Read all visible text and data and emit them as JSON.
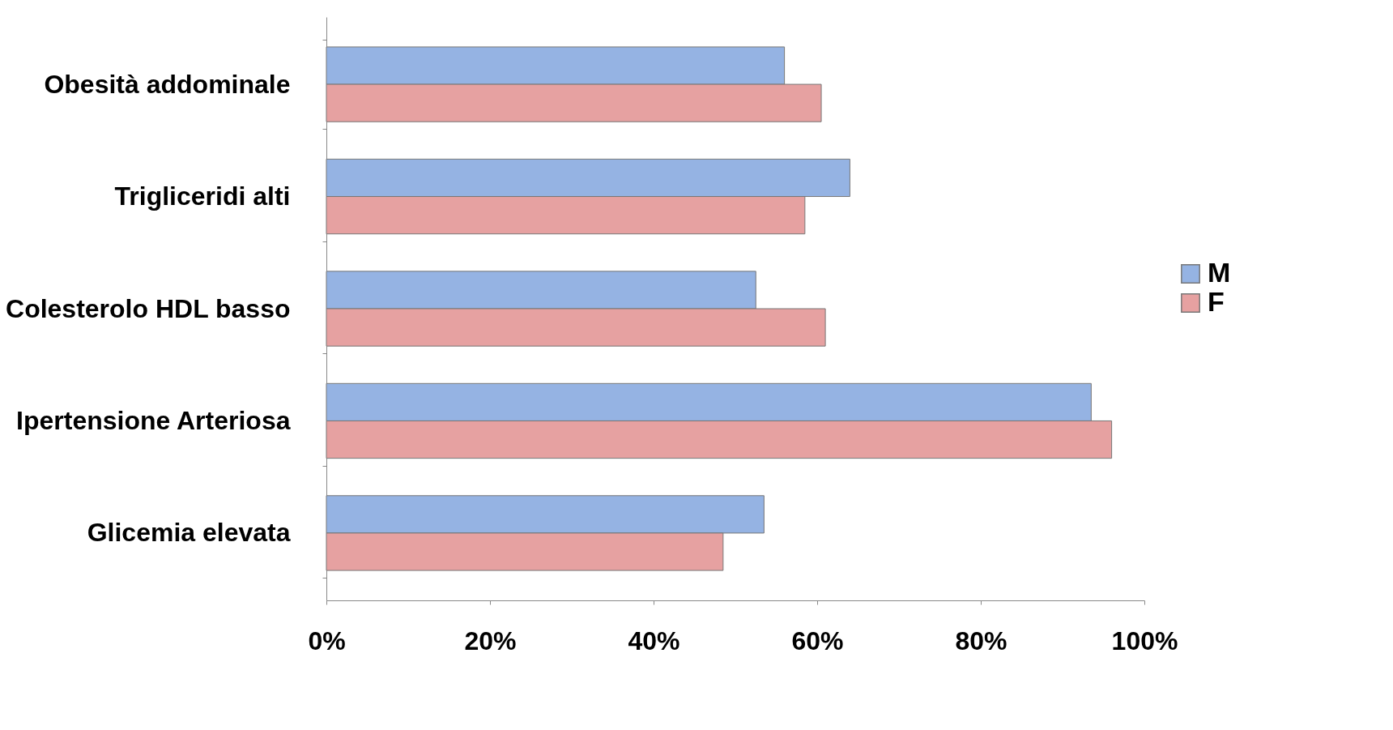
{
  "chart_data": {
    "type": "bar",
    "orientation": "horizontal",
    "categories": [
      "Obesità addominale",
      "Trigliceridi alti",
      "Colesterolo HDL basso",
      "Ipertensione Arteriosa",
      "Glicemia elevata"
    ],
    "series": [
      {
        "name": "M",
        "color": "#95b3e3",
        "values": [
          56,
          64,
          52.5,
          93.5,
          53.5
        ]
      },
      {
        "name": "F",
        "color": "#e6a1a1",
        "values": [
          60.5,
          58.5,
          61,
          96,
          48.5
        ]
      }
    ],
    "xlim": [
      0,
      100
    ],
    "xticks": [
      {
        "value": 0,
        "label": "0%"
      },
      {
        "value": 20,
        "label": "20%"
      },
      {
        "value": 40,
        "label": "40%"
      },
      {
        "value": 60,
        "label": "60%"
      },
      {
        "value": 80,
        "label": "80%"
      },
      {
        "value": 100,
        "label": "100%"
      }
    ],
    "legend": "right",
    "grid": false
  }
}
